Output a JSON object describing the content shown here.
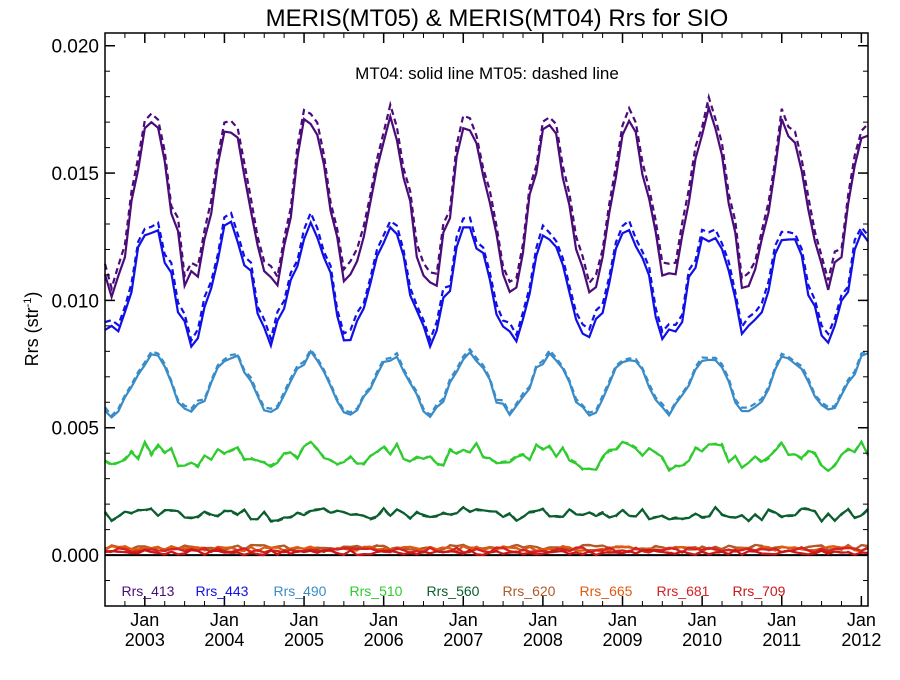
{
  "chart_data": {
    "type": "line",
    "title": "MERIS(MT05) & MERIS(MT04)  Rrs for SIO",
    "subtitle": "",
    "annotation": "MT04: solid line   MT05: dashed line",
    "ylabel_main": "Rrs (str",
    "ylabel_sup": "-1",
    "ylabel_close": ")",
    "xlabel": "",
    "x_axis": "months since Jul 2002",
    "xlim": [
      0,
      115
    ],
    "ylim": [
      -0.002,
      0.0205
    ],
    "yticks": [
      {
        "value": 0.0,
        "label": "0.000"
      },
      {
        "value": 0.005,
        "label": "0.005"
      },
      {
        "value": 0.01,
        "label": "0.010"
      },
      {
        "value": 0.015,
        "label": "0.015"
      },
      {
        "value": 0.02,
        "label": "0.020"
      }
    ],
    "xticks": [
      {
        "month": 6,
        "top": "Jan",
        "bottom": "2003"
      },
      {
        "month": 18,
        "top": "Jan",
        "bottom": "2004"
      },
      {
        "month": 30,
        "top": "Jan",
        "bottom": "2005"
      },
      {
        "month": 42,
        "top": "Jan",
        "bottom": "2006"
      },
      {
        "month": 54,
        "top": "Jan",
        "bottom": "2007"
      },
      {
        "month": 66,
        "top": "Jan",
        "bottom": "2008"
      },
      {
        "month": 78,
        "top": "Jan",
        "bottom": "2009"
      },
      {
        "month": 90,
        "top": "Jan",
        "bottom": "2010"
      },
      {
        "month": 102,
        "top": "Jan",
        "bottom": "2011"
      },
      {
        "month": 114,
        "top": "Jan",
        "bottom": "2012"
      }
    ],
    "grid": false,
    "legend_placement": "bottom",
    "series": [
      {
        "name": "Rrs_413",
        "color": "#4b0c7a",
        "mean": 0.0138,
        "amp": 0.0032,
        "noise": 0.0006,
        "dashed_offset": 0.0004
      },
      {
        "name": "Rrs_443",
        "color": "#1010e6",
        "mean": 0.0107,
        "amp": 0.0021,
        "noise": 0.0005,
        "dashed_offset": 0.0003
      },
      {
        "name": "Rrs_490",
        "color": "#3a8cc8",
        "mean": 0.0067,
        "amp": 0.0011,
        "noise": 0.0002,
        "dashed_offset": 0.0001
      },
      {
        "name": "Rrs_510",
        "color": "#2ecc2e",
        "mean": 0.0039,
        "amp": 0.0003,
        "noise": 0.0003,
        "dashed_offset": 0.0
      },
      {
        "name": "Rrs_560",
        "color": "#0b5e2e",
        "mean": 0.0016,
        "amp": 0.0001,
        "noise": 0.0002,
        "dashed_offset": 0.0
      },
      {
        "name": "Rrs_620",
        "color": "#b05a2a",
        "mean": 0.0003,
        "amp": 0.0,
        "noise": 0.0001,
        "dashed_offset": 0.0
      },
      {
        "name": "Rrs_665",
        "color": "#e05a10",
        "mean": 0.00025,
        "amp": 0.0,
        "noise": 0.0001,
        "dashed_offset": 0.0
      },
      {
        "name": "Rrs_681",
        "color": "#d62222",
        "mean": 0.0002,
        "amp": 0.0,
        "noise": 0.0001,
        "dashed_offset": 0.0
      },
      {
        "name": "Rrs_709",
        "color": "#c81818",
        "mean": 0.0001,
        "amp": 0.0,
        "noise": 0.0001,
        "dashed_offset": 0.0
      }
    ]
  }
}
